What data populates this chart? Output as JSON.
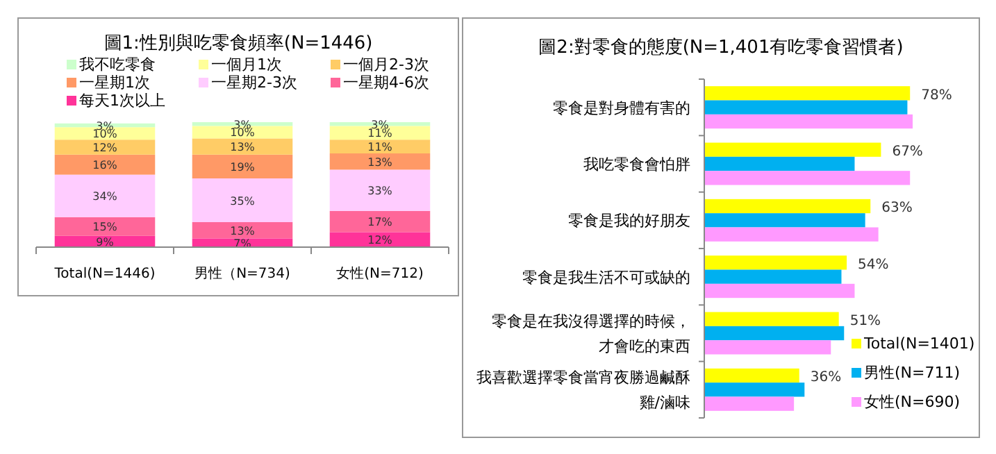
{
  "chart_data": [
    {
      "type": "bar",
      "title": "圖1:性別與吃零食頻率(N=1446)",
      "categories": [
        "Total(N=1446)",
        "男性（N=734)",
        "女性(N=712)"
      ],
      "stacked": true,
      "ylim": [
        0,
        100
      ],
      "tick_labels": "x",
      "legend": "top",
      "series": [
        {
          "name": "每天1次以上",
          "color": "#ff3399",
          "values": [
            9,
            7,
            12
          ],
          "value_labels": [
            "9%",
            "7%",
            "12%"
          ]
        },
        {
          "name": "一星期4-6次",
          "color": "#ff6699",
          "values": [
            15,
            13,
            17
          ],
          "value_labels": [
            "15%",
            "13%",
            "17%"
          ]
        },
        {
          "name": "一星期2-3次",
          "color": "#ffccff",
          "values": [
            34,
            35,
            33
          ],
          "value_labels": [
            "34%",
            "35%",
            "33%"
          ]
        },
        {
          "name": "一星期1次",
          "color": "#ff9966",
          "values": [
            16,
            19,
            13
          ],
          "value_labels": [
            "16%",
            "19%",
            "13%"
          ]
        },
        {
          "name": "一個月2-3次",
          "color": "#ffcc66",
          "values": [
            12,
            13,
            11
          ],
          "value_labels": [
            "12%",
            "13%",
            "11%"
          ]
        },
        {
          "name": "一個月1次",
          "color": "#ffff99",
          "values": [
            10,
            10,
            11
          ],
          "value_labels": [
            "10%",
            "10%",
            "11%"
          ]
        },
        {
          "name": "我不吃零食",
          "color": "#ccffcc",
          "values": [
            3,
            3,
            3
          ],
          "value_labels": [
            "3%",
            "3%",
            "3%"
          ]
        }
      ]
    },
    {
      "type": "bar",
      "title": "圖2:對零食的態度(N=1,401有吃零食習慣者)",
      "orientation": "horizontal",
      "categories": [
        "零食是對身體有害的",
        "我吃零食會怕胖",
        "零食是我的好朋友",
        "零食是我生活不可或缺的",
        "零食是在我沒得選擇的時候，才會吃的東西",
        "我喜歡選擇零食當宵夜勝過鹹酥雞/滷味"
      ],
      "tick_labels": "y",
      "legend": "bottom right",
      "series": [
        {
          "name": "Total(N=1401)",
          "color": "#ffff00",
          "values": [
            78,
            67,
            63,
            54,
            51,
            36
          ],
          "value_labels": [
            "78%",
            "67%",
            "63%",
            "54%",
            "51%",
            "36%"
          ]
        },
        {
          "name": "男性(N=711)",
          "color": "#00b0f0",
          "values": [
            77,
            57,
            61,
            52,
            53,
            38
          ]
        },
        {
          "name": "女性(N=690)",
          "color": "#ff99ff",
          "values": [
            79,
            78,
            66,
            57,
            48,
            34
          ]
        }
      ]
    }
  ]
}
